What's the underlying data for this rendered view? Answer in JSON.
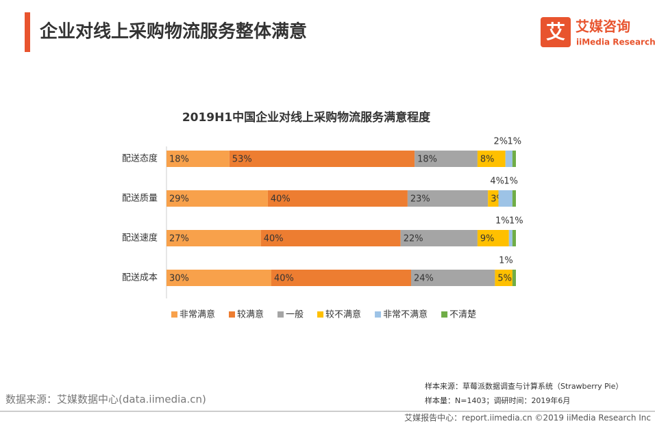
{
  "header": {
    "title": "企业对线上采购物流服务整体满意"
  },
  "logo": {
    "mark": "艾",
    "name": "艾媒咨询",
    "subname": "iiMedia Research"
  },
  "chart_data": {
    "type": "bar",
    "orientation": "horizontal",
    "stacked": true,
    "title": "2019H1中国企业对线上采购物流服务满意程度",
    "categories": [
      "配送态度",
      "配送质量",
      "配送速度",
      "配送成本"
    ],
    "xlim": [
      0,
      100
    ],
    "legend": "bottom",
    "series": [
      {
        "name": "非常满意",
        "color": "#f8a14b",
        "values": [
          18,
          29,
          27,
          30
        ],
        "value_labels": [
          "18%",
          "29%",
          "27%",
          "30%"
        ]
      },
      {
        "name": "较满意",
        "color": "#ed7d31",
        "values": [
          53,
          40,
          40,
          40
        ],
        "value_labels": [
          "53%",
          "40%",
          "40%",
          "40%"
        ]
      },
      {
        "name": "一般",
        "color": "#a5a5a5",
        "values": [
          18,
          23,
          22,
          24
        ],
        "value_labels": [
          "18%",
          "23%",
          "22%",
          "24%"
        ]
      },
      {
        "name": "较不满意",
        "color": "#ffc000",
        "values": [
          8,
          3,
          9,
          5
        ],
        "value_labels": [
          "8%",
          "3%",
          "9%",
          "5%"
        ]
      },
      {
        "name": "非常不满意",
        "color": "#9dc3e6",
        "values": [
          2,
          4,
          1,
          null
        ],
        "value_labels": [
          "2%",
          "4%",
          "1%",
          null
        ]
      },
      {
        "name": "不清楚",
        "color": "#70ad47",
        "values": [
          1,
          1,
          1,
          1
        ],
        "value_labels": [
          "1%",
          "1%",
          "1%",
          "1%"
        ]
      }
    ]
  },
  "footer": {
    "source": "数据来源：艾媒数据中心(data.iimedia.cn)",
    "sample_source": "样本来源：草莓派数据调查与计算系统（Strawberry Pie）",
    "sample_size": "样本量：N=1403；调研时间：2019年6月",
    "copyright": "艾媒报告中心：report.iimedia.cn  ©2019  iiMedia Research Inc"
  }
}
